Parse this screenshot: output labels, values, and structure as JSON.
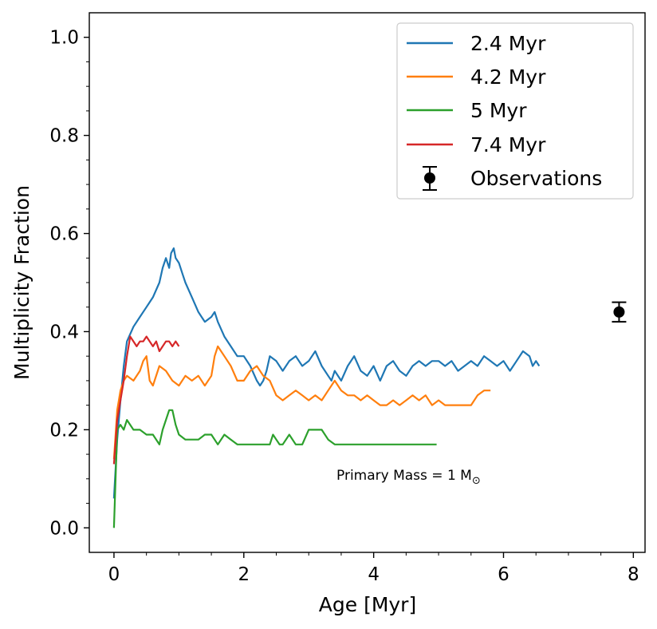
{
  "chart_data": {
    "type": "line",
    "title": "",
    "xlabel": "Age [Myr]",
    "ylabel": "Multiplicity Fraction",
    "xlim": [
      -0.38,
      8.18
    ],
    "ylim": [
      -0.05,
      1.05
    ],
    "x_ticks": [
      0,
      2,
      4,
      6,
      8
    ],
    "x_tick_labels": [
      "0",
      "2",
      "4",
      "6",
      "8"
    ],
    "y_ticks": [
      0.0,
      0.2,
      0.4,
      0.6,
      0.8,
      1.0
    ],
    "y_tick_labels": [
      "0.0",
      "0.2",
      "0.4",
      "0.6",
      "0.8",
      "1.0"
    ],
    "grid": false,
    "legend_position": "top-right",
    "annotation": {
      "prefix": "Primary Mass = 1 M",
      "subscript": "⊙"
    },
    "series": [
      {
        "name": "2.4 Myr",
        "color": "#1f77b4",
        "x": [
          0,
          0.05,
          0.1,
          0.15,
          0.2,
          0.3,
          0.4,
          0.5,
          0.6,
          0.7,
          0.75,
          0.8,
          0.85,
          0.88,
          0.92,
          0.95,
          1.0,
          1.05,
          1.1,
          1.2,
          1.3,
          1.4,
          1.5,
          1.55,
          1.6,
          1.7,
          1.8,
          1.9,
          2.0,
          2.1,
          2.2,
          2.25,
          2.3,
          2.35,
          2.4,
          2.5,
          2.6,
          2.7,
          2.8,
          2.9,
          3.0,
          3.1,
          3.2,
          3.3,
          3.35,
          3.4,
          3.5,
          3.6,
          3.7,
          3.8,
          3.9,
          4.0,
          4.1,
          4.2,
          4.3,
          4.4,
          4.5,
          4.6,
          4.7,
          4.8,
          4.9,
          5.0,
          5.1,
          5.2,
          5.3,
          5.4,
          5.5,
          5.6,
          5.7,
          5.8,
          5.9,
          6.0,
          6.1,
          6.2,
          6.3,
          6.4,
          6.45,
          6.5,
          6.55
        ],
        "y": [
          0.06,
          0.18,
          0.26,
          0.33,
          0.38,
          0.41,
          0.43,
          0.45,
          0.47,
          0.5,
          0.53,
          0.55,
          0.53,
          0.56,
          0.57,
          0.55,
          0.54,
          0.52,
          0.5,
          0.47,
          0.44,
          0.42,
          0.43,
          0.44,
          0.42,
          0.39,
          0.37,
          0.35,
          0.35,
          0.33,
          0.3,
          0.29,
          0.3,
          0.32,
          0.35,
          0.34,
          0.32,
          0.34,
          0.35,
          0.33,
          0.34,
          0.36,
          0.33,
          0.31,
          0.3,
          0.32,
          0.3,
          0.33,
          0.35,
          0.32,
          0.31,
          0.33,
          0.3,
          0.33,
          0.34,
          0.32,
          0.31,
          0.33,
          0.34,
          0.33,
          0.34,
          0.34,
          0.33,
          0.34,
          0.32,
          0.33,
          0.34,
          0.33,
          0.35,
          0.34,
          0.33,
          0.34,
          0.32,
          0.34,
          0.36,
          0.35,
          0.33,
          0.34,
          0.33
        ]
      },
      {
        "name": "4.2 Myr",
        "color": "#ff7f0e",
        "x": [
          0,
          0.05,
          0.1,
          0.15,
          0.2,
          0.3,
          0.4,
          0.45,
          0.5,
          0.55,
          0.6,
          0.7,
          0.8,
          0.9,
          1.0,
          1.1,
          1.2,
          1.3,
          1.4,
          1.5,
          1.55,
          1.6,
          1.7,
          1.8,
          1.9,
          2.0,
          2.1,
          2.2,
          2.3,
          2.4,
          2.5,
          2.6,
          2.7,
          2.8,
          2.9,
          3.0,
          3.1,
          3.2,
          3.3,
          3.4,
          3.5,
          3.6,
          3.7,
          3.8,
          3.9,
          4.0,
          4.1,
          4.2,
          4.3,
          4.4,
          4.5,
          4.6,
          4.7,
          4.8,
          4.9,
          5.0,
          5.1,
          5.2,
          5.3,
          5.4,
          5.5,
          5.6,
          5.7,
          5.75,
          5.8
        ],
        "y": [
          0.14,
          0.24,
          0.28,
          0.3,
          0.31,
          0.3,
          0.32,
          0.34,
          0.35,
          0.3,
          0.29,
          0.33,
          0.32,
          0.3,
          0.29,
          0.31,
          0.3,
          0.31,
          0.29,
          0.31,
          0.35,
          0.37,
          0.35,
          0.33,
          0.3,
          0.3,
          0.32,
          0.33,
          0.31,
          0.3,
          0.27,
          0.26,
          0.27,
          0.28,
          0.27,
          0.26,
          0.27,
          0.26,
          0.28,
          0.3,
          0.28,
          0.27,
          0.27,
          0.26,
          0.27,
          0.26,
          0.25,
          0.25,
          0.26,
          0.25,
          0.26,
          0.27,
          0.26,
          0.27,
          0.25,
          0.26,
          0.25,
          0.25,
          0.25,
          0.25,
          0.25,
          0.27,
          0.28,
          0.28,
          0.28
        ]
      },
      {
        "name": "5 Myr",
        "color": "#2ca02c",
        "x": [
          0,
          0.05,
          0.1,
          0.15,
          0.2,
          0.25,
          0.3,
          0.4,
          0.5,
          0.6,
          0.7,
          0.75,
          0.8,
          0.85,
          0.9,
          0.95,
          1.0,
          1.1,
          1.2,
          1.3,
          1.4,
          1.5,
          1.6,
          1.7,
          1.8,
          1.9,
          2.0,
          2.2,
          2.3,
          2.4,
          2.45,
          2.5,
          2.55,
          2.6,
          2.7,
          2.8,
          2.9,
          3.0,
          3.1,
          3.2,
          3.3,
          3.4,
          3.5,
          3.6,
          3.8,
          4.0,
          4.2,
          4.4,
          4.5,
          4.6,
          4.7,
          4.8,
          4.97
        ],
        "y": [
          0.0,
          0.2,
          0.21,
          0.2,
          0.22,
          0.21,
          0.2,
          0.2,
          0.19,
          0.19,
          0.17,
          0.2,
          0.22,
          0.24,
          0.24,
          0.21,
          0.19,
          0.18,
          0.18,
          0.18,
          0.19,
          0.19,
          0.17,
          0.19,
          0.18,
          0.17,
          0.17,
          0.17,
          0.17,
          0.17,
          0.19,
          0.18,
          0.17,
          0.17,
          0.19,
          0.17,
          0.17,
          0.2,
          0.2,
          0.2,
          0.18,
          0.17,
          0.17,
          0.17,
          0.17,
          0.17,
          0.17,
          0.17,
          0.17,
          0.17,
          0.17,
          0.17,
          0.17
        ]
      },
      {
        "name": "7.4 Myr",
        "color": "#d62728",
        "x": [
          0,
          0.05,
          0.1,
          0.15,
          0.2,
          0.25,
          0.3,
          0.35,
          0.4,
          0.45,
          0.5,
          0.55,
          0.6,
          0.65,
          0.7,
          0.75,
          0.8,
          0.85,
          0.9,
          0.95,
          1.0
        ],
        "y": [
          0.13,
          0.22,
          0.26,
          0.3,
          0.35,
          0.39,
          0.38,
          0.37,
          0.38,
          0.38,
          0.39,
          0.38,
          0.37,
          0.38,
          0.36,
          0.37,
          0.38,
          0.38,
          0.37,
          0.38,
          0.37
        ]
      }
    ],
    "observations": {
      "name": "Observations",
      "color": "#000000",
      "x": 7.78,
      "y": 0.44,
      "yerr": 0.02
    }
  }
}
